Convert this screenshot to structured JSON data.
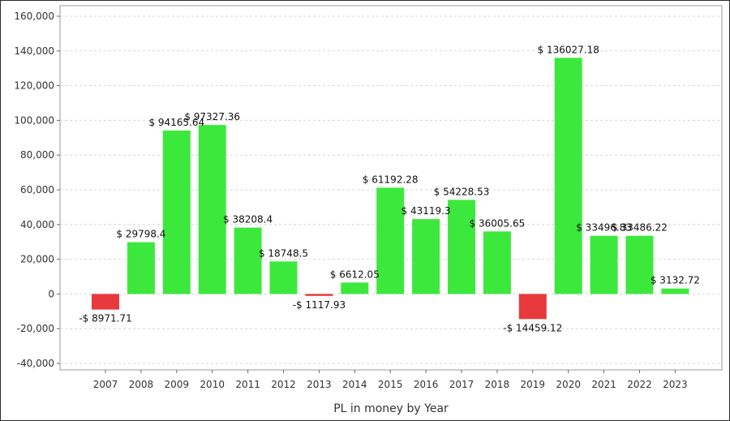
{
  "chart_data": {
    "type": "bar",
    "title": "",
    "xlabel": "PL in money by Year",
    "ylabel": "",
    "ylim": [
      -40000,
      160000
    ],
    "yticks": [
      -40000,
      -20000,
      0,
      20000,
      40000,
      60000,
      80000,
      100000,
      120000,
      140000,
      160000
    ],
    "ytick_labels": [
      "-40,000",
      "-20,000",
      "0",
      "20,000",
      "40,000",
      "60,000",
      "80,000",
      "100,000",
      "120,000",
      "140,000",
      "160,000"
    ],
    "grid": true,
    "categories": [
      "2007",
      "2008",
      "2009",
      "2010",
      "2011",
      "2012",
      "2013",
      "2014",
      "2015",
      "2016",
      "2017",
      "2018",
      "2019",
      "2020",
      "2021",
      "2022",
      "2023"
    ],
    "values": [
      -8971.71,
      29798.4,
      94165.64,
      97327.36,
      38208.4,
      18748.5,
      -1117.93,
      6612.05,
      61192.28,
      43119.3,
      54228.53,
      36005.65,
      -14459.12,
      136027.18,
      33496.83,
      33486.22,
      3132.72
    ],
    "data_labels": [
      "-$ 8971.71",
      "$ 29798.4",
      "$ 94165.64",
      "$ 97327.36",
      "$ 38208.4",
      "$ 18748.5",
      "-$ 1117.93",
      "$ 6612.05",
      "$ 61192.28",
      "$ 43119.3",
      "$ 54228.53",
      "$ 36005.65",
      "-$ 14459.12",
      "$ 136027.18",
      "$ 33496.83",
      "$ 33486.22",
      "$ 3132.72"
    ],
    "colors": {
      "positive": "#3de83d",
      "negative": "#e8393c"
    }
  }
}
